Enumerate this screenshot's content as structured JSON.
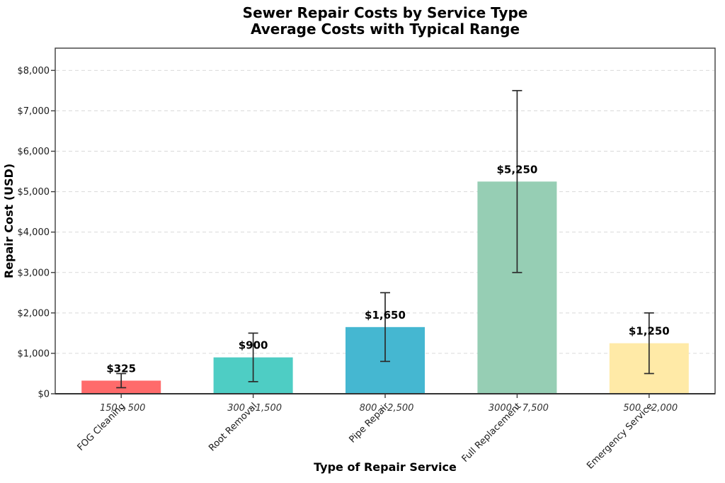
{
  "chart_data": {
    "type": "bar",
    "title": "Sewer Repair Costs by Service Type",
    "subtitle": "Average Costs with Typical Range",
    "xlabel": "Type of Repair Service",
    "ylabel": "Repair Cost (USD)",
    "categories": [
      "FOG Cleaning",
      "Root Removal",
      "Pipe Repair",
      "Full Replacement",
      "Emergency Service"
    ],
    "values": [
      325,
      900,
      1650,
      5250,
      1250
    ],
    "value_labels": [
      "$325",
      "$900",
      "$1,650",
      "$5,250",
      "$1,250"
    ],
    "error_low": [
      150,
      300,
      800,
      3000,
      500
    ],
    "error_high": [
      500,
      1500,
      2500,
      7500,
      2000
    ],
    "range_labels": [
      "150 – 500",
      "300 – 1,500",
      "800 – 2,500",
      "3000 – 7,500",
      "500 – 2,000"
    ],
    "bar_colors": [
      "#FF6B6B",
      "#4ECDC4",
      "#45B7D1",
      "#96CEB4",
      "#FFEAA7"
    ],
    "error_bar_color": "#2b2b2b",
    "y_ticks": [
      0,
      1000,
      2000,
      3000,
      4000,
      5000,
      6000,
      7000,
      8000
    ],
    "y_tick_labels": [
      "$0",
      "$1,000",
      "$2,000",
      "$3,000",
      "$4,000",
      "$5,000",
      "$6,000",
      "$7,000",
      "$8,000"
    ],
    "ylim": [
      0,
      8550
    ],
    "grid": "horizontal-dashed",
    "legend": "none",
    "background": "#ffffff"
  }
}
